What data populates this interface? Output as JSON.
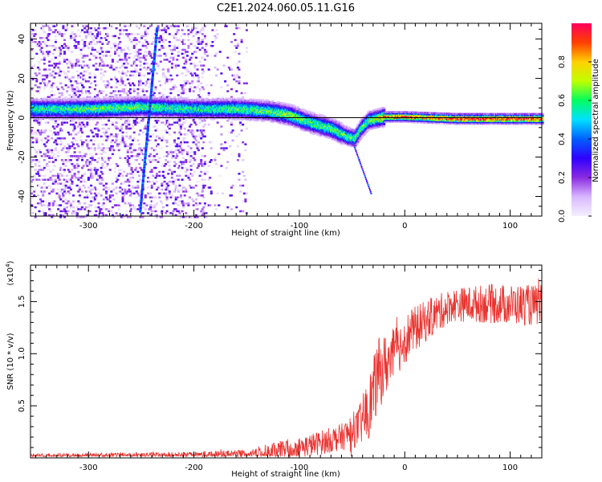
{
  "title": "C2E1.2024.060.05.11.G16",
  "chart_data": [
    {
      "type": "heatmap",
      "xlabel": "Height of straight line (km)",
      "ylabel": "Frequency (Hz)",
      "xlim": [
        -355,
        130
      ],
      "ylim": [
        -50,
        48
      ],
      "xticks": [
        -300,
        -200,
        -100,
        0,
        100
      ],
      "xtick_labels": [
        "-300",
        "-200",
        "-100",
        "0",
        "100"
      ],
      "yticks": [
        -40,
        -20,
        0,
        20,
        40
      ],
      "ytick_labels": [
        "-40",
        "-20",
        "0",
        "20",
        "40"
      ],
      "colorbar": {
        "label": "Normalized spectral amplitude",
        "range": [
          0,
          1
        ],
        "ticks": [
          0.0,
          0.2,
          0.4,
          0.6,
          0.8
        ],
        "tick_labels": [
          "0.0",
          "0.2",
          "0.4",
          "0.6",
          "0.8"
        ],
        "colormap": [
          "#f5f0ff",
          "#d9b8ff",
          "#8a2be2",
          "#3000ff",
          "#0060ff",
          "#00e0ff",
          "#00ff60",
          "#c0ff00",
          "#ffd000",
          "#ff4000",
          "#ff0060"
        ]
      },
      "ridge": [
        {
          "x": -355,
          "f": 5,
          "a": 0.55
        },
        {
          "x": -300,
          "f": 5,
          "a": 0.6
        },
        {
          "x": -250,
          "f": 6,
          "a": 0.6
        },
        {
          "x": -200,
          "f": 5,
          "a": 0.55
        },
        {
          "x": -160,
          "f": 5,
          "a": 0.6
        },
        {
          "x": -130,
          "f": 4,
          "a": 0.6
        },
        {
          "x": -110,
          "f": 2,
          "a": 0.65
        },
        {
          "x": -90,
          "f": -2,
          "a": 0.6
        },
        {
          "x": -70,
          "f": -5,
          "a": 0.6
        },
        {
          "x": -55,
          "f": -9,
          "a": 0.6
        },
        {
          "x": -48,
          "f": -10,
          "a": 0.6
        },
        {
          "x": -42,
          "f": -5,
          "a": 0.6
        },
        {
          "x": -35,
          "f": -1,
          "a": 0.6
        },
        {
          "x": -20,
          "f": 1,
          "a": 0.85
        },
        {
          "x": 0,
          "f": 1,
          "a": 0.85
        },
        {
          "x": 50,
          "f": 0,
          "a": 0.95
        },
        {
          "x": 130,
          "f": 0,
          "a": 0.95
        }
      ],
      "streak": [
        {
          "x": -252,
          "f": -47
        },
        {
          "x": -236,
          "f": 46
        }
      ]
    },
    {
      "type": "line",
      "xlabel": "Height of straight line (km)",
      "ylabel": "SNR (10 * v/v)",
      "y_multiplier": "(x10",
      "y_multiplier_exp": "4",
      "y_multiplier_close": ")",
      "xlim": [
        -355,
        130
      ],
      "ylim": [
        0,
        18500
      ],
      "xticks": [
        -300,
        -200,
        -100,
        0,
        100
      ],
      "xtick_labels": [
        "-300",
        "-200",
        "-100",
        "0",
        "100"
      ],
      "yticks": [
        5000,
        10000,
        15000
      ],
      "ytick_labels": [
        "0.5",
        "1.0",
        "1.5"
      ],
      "color": "#e8332e",
      "profile": [
        {
          "x": -355,
          "y": 200,
          "n": 250
        },
        {
          "x": -200,
          "y": 300,
          "n": 300
        },
        {
          "x": -150,
          "y": 400,
          "n": 400
        },
        {
          "x": -120,
          "y": 700,
          "n": 900
        },
        {
          "x": -90,
          "y": 1200,
          "n": 1100
        },
        {
          "x": -60,
          "y": 2000,
          "n": 1300
        },
        {
          "x": -45,
          "y": 2800,
          "n": 1800
        },
        {
          "x": -35,
          "y": 4500,
          "n": 3000
        },
        {
          "x": -25,
          "y": 8000,
          "n": 3500
        },
        {
          "x": -10,
          "y": 10000,
          "n": 2500
        },
        {
          "x": 5,
          "y": 12000,
          "n": 2300
        },
        {
          "x": 25,
          "y": 13500,
          "n": 1900
        },
        {
          "x": 45,
          "y": 14700,
          "n": 1600
        },
        {
          "x": 80,
          "y": 14800,
          "n": 1900
        },
        {
          "x": 130,
          "y": 14600,
          "n": 2000
        }
      ]
    }
  ]
}
